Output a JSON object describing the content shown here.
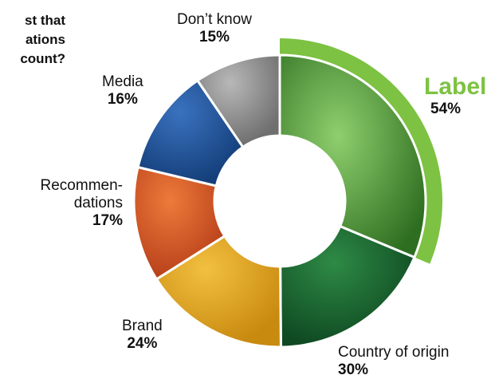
{
  "question": [
    "st that",
    "ations",
    "count?"
  ],
  "colors": {
    "highlight": "#7dc242",
    "center": "#ffffff"
  },
  "chart_data": {
    "type": "pie",
    "style": "donut",
    "title": "",
    "categories": [
      "Label",
      "Country of origin",
      "Brand",
      "Recommendations",
      "Media",
      "Don’t know"
    ],
    "values": [
      54,
      30,
      24,
      17,
      16,
      15
    ],
    "value_labels": [
      "54%",
      "30%",
      "24%",
      "17%",
      "16%",
      "15%"
    ],
    "display_names": {
      "label": "Label",
      "country": "Country of origin",
      "brand": "Brand",
      "recommendations": [
        "Recommen-",
        "dations"
      ],
      "media": "Media",
      "dontknow": "Don’t know"
    },
    "slice_colors": [
      "#3f8a2a",
      "#1f6a33",
      "#e0a31c",
      "#d9531f",
      "#2c5aa0",
      "#8c8c8c"
    ],
    "highlighted": "Label"
  }
}
